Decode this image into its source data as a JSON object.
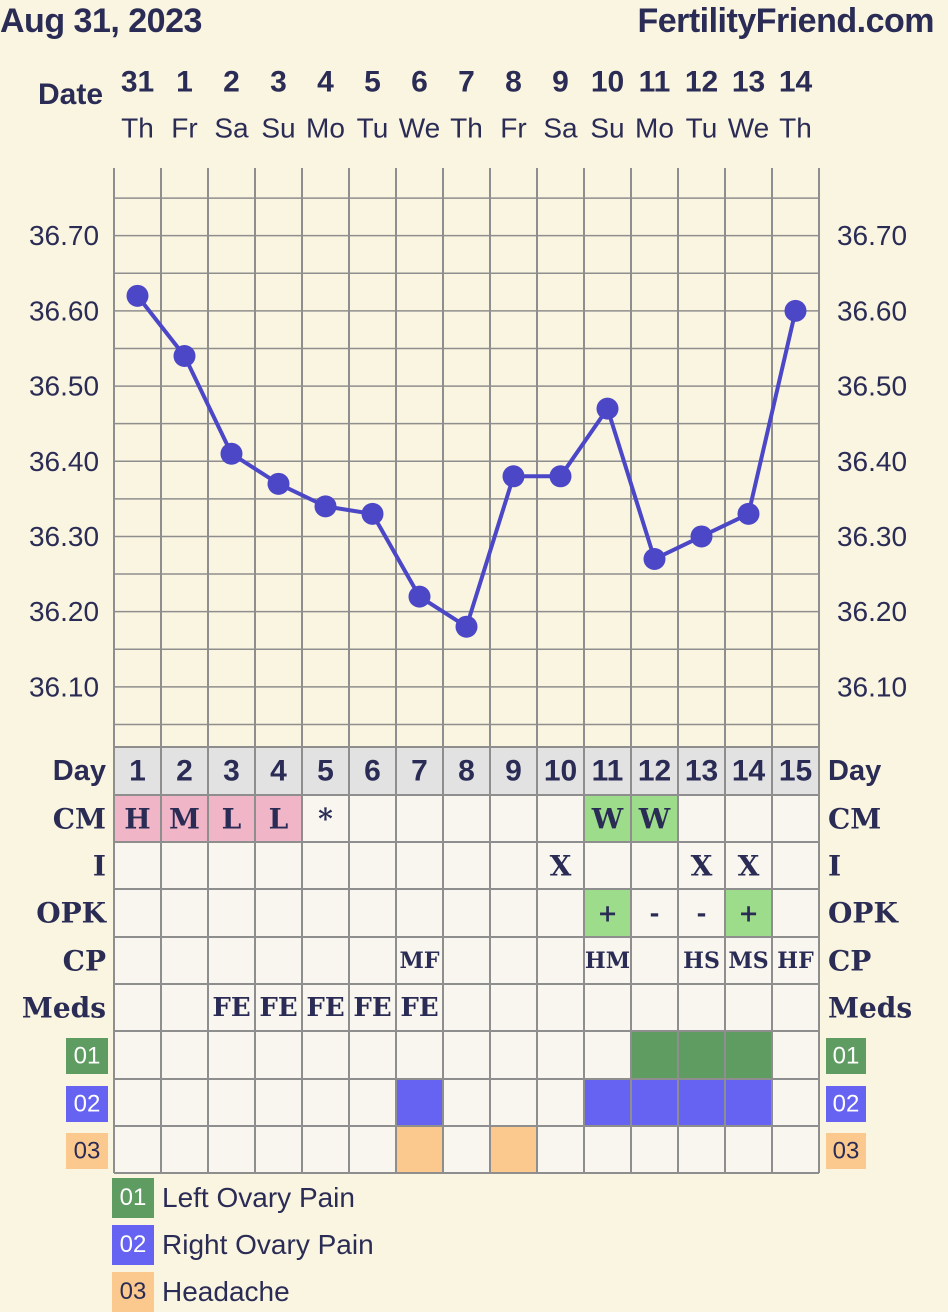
{
  "header": {
    "date": "Aug 31, 2023",
    "site": "FertilityFriend.com"
  },
  "row_labels": {
    "date": "Date",
    "day": "Day",
    "cm": "CM",
    "i": "I",
    "opk": "OPK",
    "cp": "CP",
    "meds": "Meds"
  },
  "chart_data": {
    "type": "line",
    "categories": [
      "31",
      "1",
      "2",
      "3",
      "4",
      "5",
      "6",
      "7",
      "8",
      "9",
      "10",
      "11",
      "12",
      "13",
      "14"
    ],
    "weekdays": [
      "Th",
      "Fr",
      "Sa",
      "Su",
      "Mo",
      "Tu",
      "We",
      "Th",
      "Fr",
      "Sa",
      "Su",
      "Mo",
      "Tu",
      "We",
      "Th"
    ],
    "cycle_days": [
      "1",
      "2",
      "3",
      "4",
      "5",
      "6",
      "7",
      "8",
      "9",
      "10",
      "11",
      "12",
      "13",
      "14",
      "15"
    ],
    "series": [
      {
        "values": [
          36.62,
          36.54,
          36.41,
          36.37,
          36.34,
          36.33,
          36.22,
          36.18,
          36.38,
          36.38,
          36.47,
          36.27,
          36.3,
          36.33,
          36.6
        ]
      }
    ],
    "yticks": [
      "36.70",
      "36.60",
      "36.50",
      "36.40",
      "36.30",
      "36.20",
      "36.10"
    ],
    "ylim": [
      36.02,
      36.79
    ],
    "line_color": "#4b47c7"
  },
  "rows": {
    "cm": [
      "H",
      "M",
      "L",
      "L",
      "*",
      "",
      "",
      "",
      "",
      "",
      "W",
      "W",
      "",
      "",
      ""
    ],
    "i": [
      "",
      "",
      "",
      "",
      "",
      "",
      "",
      "",
      "",
      "X",
      "",
      "",
      "X",
      "X",
      ""
    ],
    "opk": [
      "",
      "",
      "",
      "",
      "",
      "",
      "",
      "",
      "",
      "",
      "+",
      "-",
      "-",
      "+",
      ""
    ],
    "cp": [
      "",
      "",
      "",
      "",
      "",
      "",
      "MF",
      "",
      "",
      "",
      "HM",
      "",
      "HS",
      "MS",
      "HF"
    ],
    "meds": [
      "",
      "",
      "FE",
      "FE",
      "FE",
      "FE",
      "FE",
      "",
      "",
      "",
      "",
      "",
      "",
      "",
      ""
    ]
  },
  "colors": {
    "cm_pink": "#f0b6c8",
    "cm_green": "#9cdc8a",
    "opk_green": "#9cdc8a",
    "symptom_01": "#5f9c62",
    "symptom_02": "#6663f2",
    "symptom_03": "#fbc98e",
    "grid": "#8e8e8e",
    "cell_bg": "#f8f6ee",
    "day_row_bg": "#e2e2e2"
  },
  "symptoms": [
    {
      "code": "01",
      "label": "Left Ovary Pain",
      "days": [
        12,
        13,
        14
      ]
    },
    {
      "code": "02",
      "label": "Right Ovary Pain",
      "days": [
        7,
        11,
        12,
        13,
        14
      ]
    },
    {
      "code": "03",
      "label": "Headache",
      "days": [
        7,
        9
      ]
    }
  ]
}
